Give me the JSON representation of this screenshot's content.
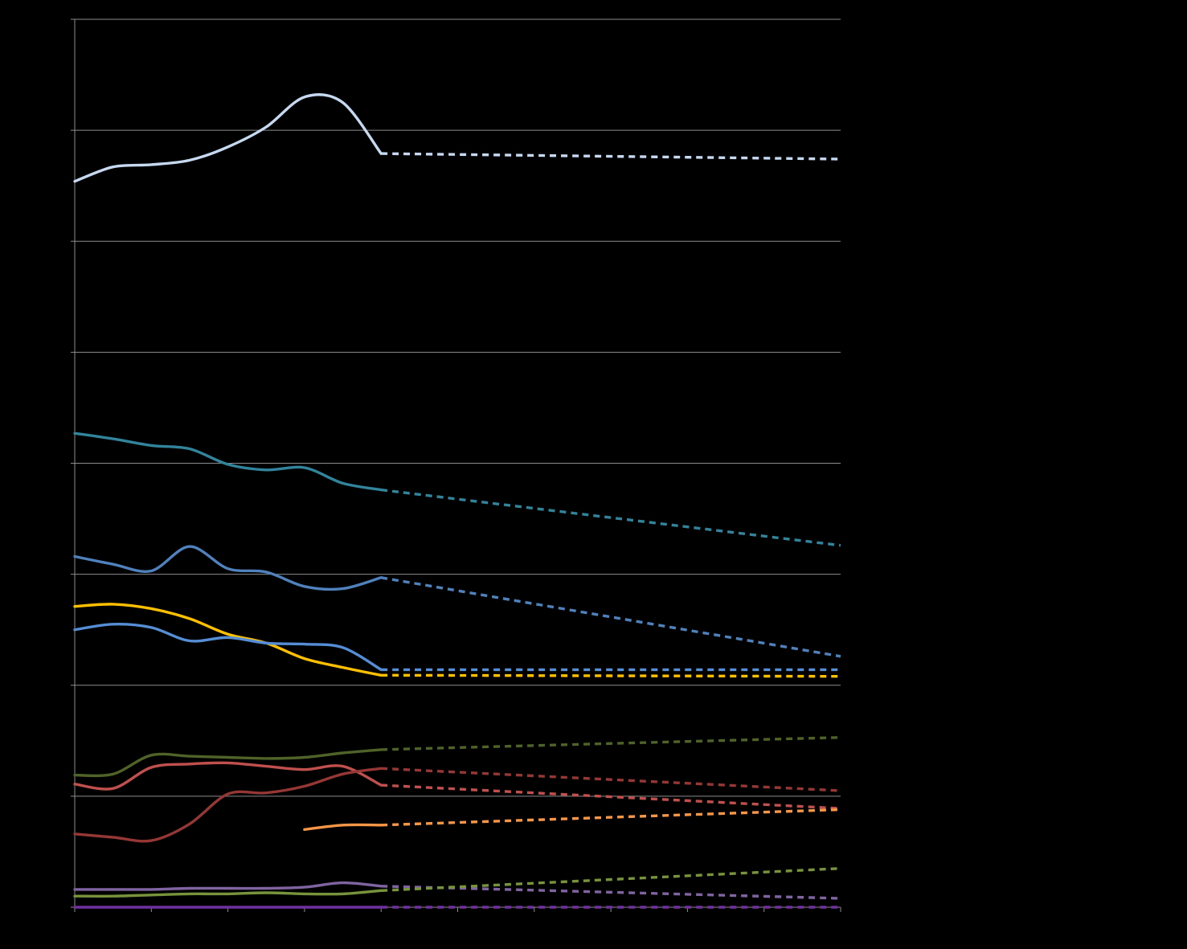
{
  "chart_data": {
    "type": "line",
    "title": "",
    "xlabel": "",
    "ylabel": "",
    "ylim": [
      0,
      8
    ],
    "xlim": [
      0,
      10
    ],
    "x_tick_count": 11,
    "y_gridlines": [
      1,
      2,
      3,
      4,
      5,
      6,
      7,
      8
    ],
    "grid": true,
    "legend": "none",
    "background": "#000000",
    "series": [
      {
        "color": "#c6d9f1",
        "style": "solid-then-dashed",
        "x": [
          0,
          0.5,
          1,
          1.5,
          2,
          2.5,
          3,
          3.5,
          4
        ],
        "values": [
          6.54,
          6.67,
          6.69,
          6.73,
          6.85,
          7.03,
          7.3,
          7.25,
          6.79
        ],
        "projection": {
          "x": [
            4,
            10
          ],
          "values": [
            6.79,
            6.74
          ]
        }
      },
      {
        "color": "#31849b",
        "style": "solid-then-dashed",
        "x": [
          0,
          0.5,
          1,
          1.5,
          2,
          2.5,
          3,
          3.5,
          4
        ],
        "values": [
          4.27,
          4.22,
          4.16,
          4.13,
          3.99,
          3.94,
          3.96,
          3.82,
          3.76
        ],
        "projection": {
          "x": [
            4,
            10
          ],
          "values": [
            3.76,
            3.26
          ]
        }
      },
      {
        "color": "#4f81bd",
        "style": "solid-then-dashed",
        "x": [
          0,
          0.5,
          1,
          1.5,
          2,
          2.5,
          3,
          3.5,
          4
        ],
        "values": [
          3.16,
          3.09,
          3.03,
          3.25,
          3.05,
          3.02,
          2.89,
          2.87,
          2.97
        ],
        "projection": {
          "x": [
            4,
            10
          ],
          "values": [
            2.97,
            2.26
          ]
        }
      },
      {
        "color": "#ffc000",
        "style": "solid-then-dashed",
        "x": [
          0,
          0.5,
          1,
          1.5,
          2,
          2.5,
          3,
          3.5,
          4
        ],
        "values": [
          2.71,
          2.73,
          2.69,
          2.6,
          2.46,
          2.38,
          2.24,
          2.16,
          2.09
        ],
        "projection": {
          "x": [
            4,
            10
          ],
          "values": [
            2.09,
            2.08
          ]
        }
      },
      {
        "color": "#558ed5",
        "style": "solid-then-dashed",
        "x": [
          0,
          0.5,
          1,
          1.5,
          2,
          2.5,
          3,
          3.5,
          4
        ],
        "values": [
          2.5,
          2.55,
          2.52,
          2.4,
          2.43,
          2.38,
          2.37,
          2.34,
          2.14
        ],
        "projection": {
          "x": [
            4,
            10
          ],
          "values": [
            2.14,
            2.14
          ]
        }
      },
      {
        "color": "#4f6228",
        "style": "solid-then-dashed",
        "x": [
          0,
          0.5,
          1,
          1.5,
          2,
          2.5,
          3,
          3.5,
          4
        ],
        "values": [
          1.19,
          1.2,
          1.37,
          1.36,
          1.35,
          1.34,
          1.35,
          1.39,
          1.42
        ],
        "projection": {
          "x": [
            4,
            10
          ],
          "values": [
            1.42,
            1.53
          ]
        }
      },
      {
        "color": "#c0504d",
        "style": "solid-then-dashed",
        "x": [
          0,
          0.5,
          1,
          1.5,
          2,
          2.5,
          3,
          3.5,
          4
        ],
        "values": [
          1.11,
          1.07,
          1.26,
          1.29,
          1.3,
          1.27,
          1.24,
          1.27,
          1.1
        ],
        "projection": {
          "x": [
            4,
            10
          ],
          "values": [
            1.1,
            0.89
          ]
        }
      },
      {
        "color": "#953735",
        "style": "solid-then-dashed",
        "x": [
          0,
          0.5,
          1,
          1.5,
          2,
          2.5,
          3,
          3.5,
          4
        ],
        "values": [
          0.66,
          0.63,
          0.6,
          0.75,
          1.02,
          1.03,
          1.09,
          1.2,
          1.25
        ],
        "projection": {
          "x": [
            4,
            10
          ],
          "values": [
            1.25,
            1.05
          ]
        }
      },
      {
        "color": "#f79646",
        "style": "solid-then-dashed",
        "x": [
          3,
          3.5,
          4
        ],
        "values": [
          0.7,
          0.74,
          0.74
        ],
        "projection": {
          "x": [
            4,
            10
          ],
          "values": [
            0.74,
            0.88
          ]
        }
      },
      {
        "color": "#8064a2",
        "style": "solid-then-dashed",
        "x": [
          0,
          0.5,
          1,
          1.5,
          2,
          2.5,
          3,
          3.5,
          4
        ],
        "values": [
          0.16,
          0.16,
          0.16,
          0.17,
          0.17,
          0.17,
          0.18,
          0.22,
          0.19
        ],
        "projection": {
          "x": [
            4,
            10
          ],
          "values": [
            0.19,
            0.08
          ]
        }
      },
      {
        "color": "#77933c",
        "style": "solid-then-dashed",
        "x": [
          0,
          0.5,
          1,
          1.5,
          2,
          2.5,
          3,
          3.5,
          4
        ],
        "values": [
          0.1,
          0.1,
          0.11,
          0.12,
          0.12,
          0.13,
          0.12,
          0.12,
          0.15
        ],
        "projection": {
          "x": [
            4,
            10
          ],
          "values": [
            0.15,
            0.35
          ]
        }
      },
      {
        "color": "#7030a0",
        "style": "solid-then-dashed",
        "x": [
          0,
          0.5,
          1,
          1.5,
          2,
          2.5,
          3,
          3.5,
          4
        ],
        "values": [
          0.0,
          0.0,
          0.0,
          0.0,
          0.0,
          0.0,
          0.0,
          0.0,
          0.0
        ],
        "projection": {
          "x": [
            4,
            10
          ],
          "values": [
            0.0,
            0.0
          ]
        }
      }
    ]
  }
}
